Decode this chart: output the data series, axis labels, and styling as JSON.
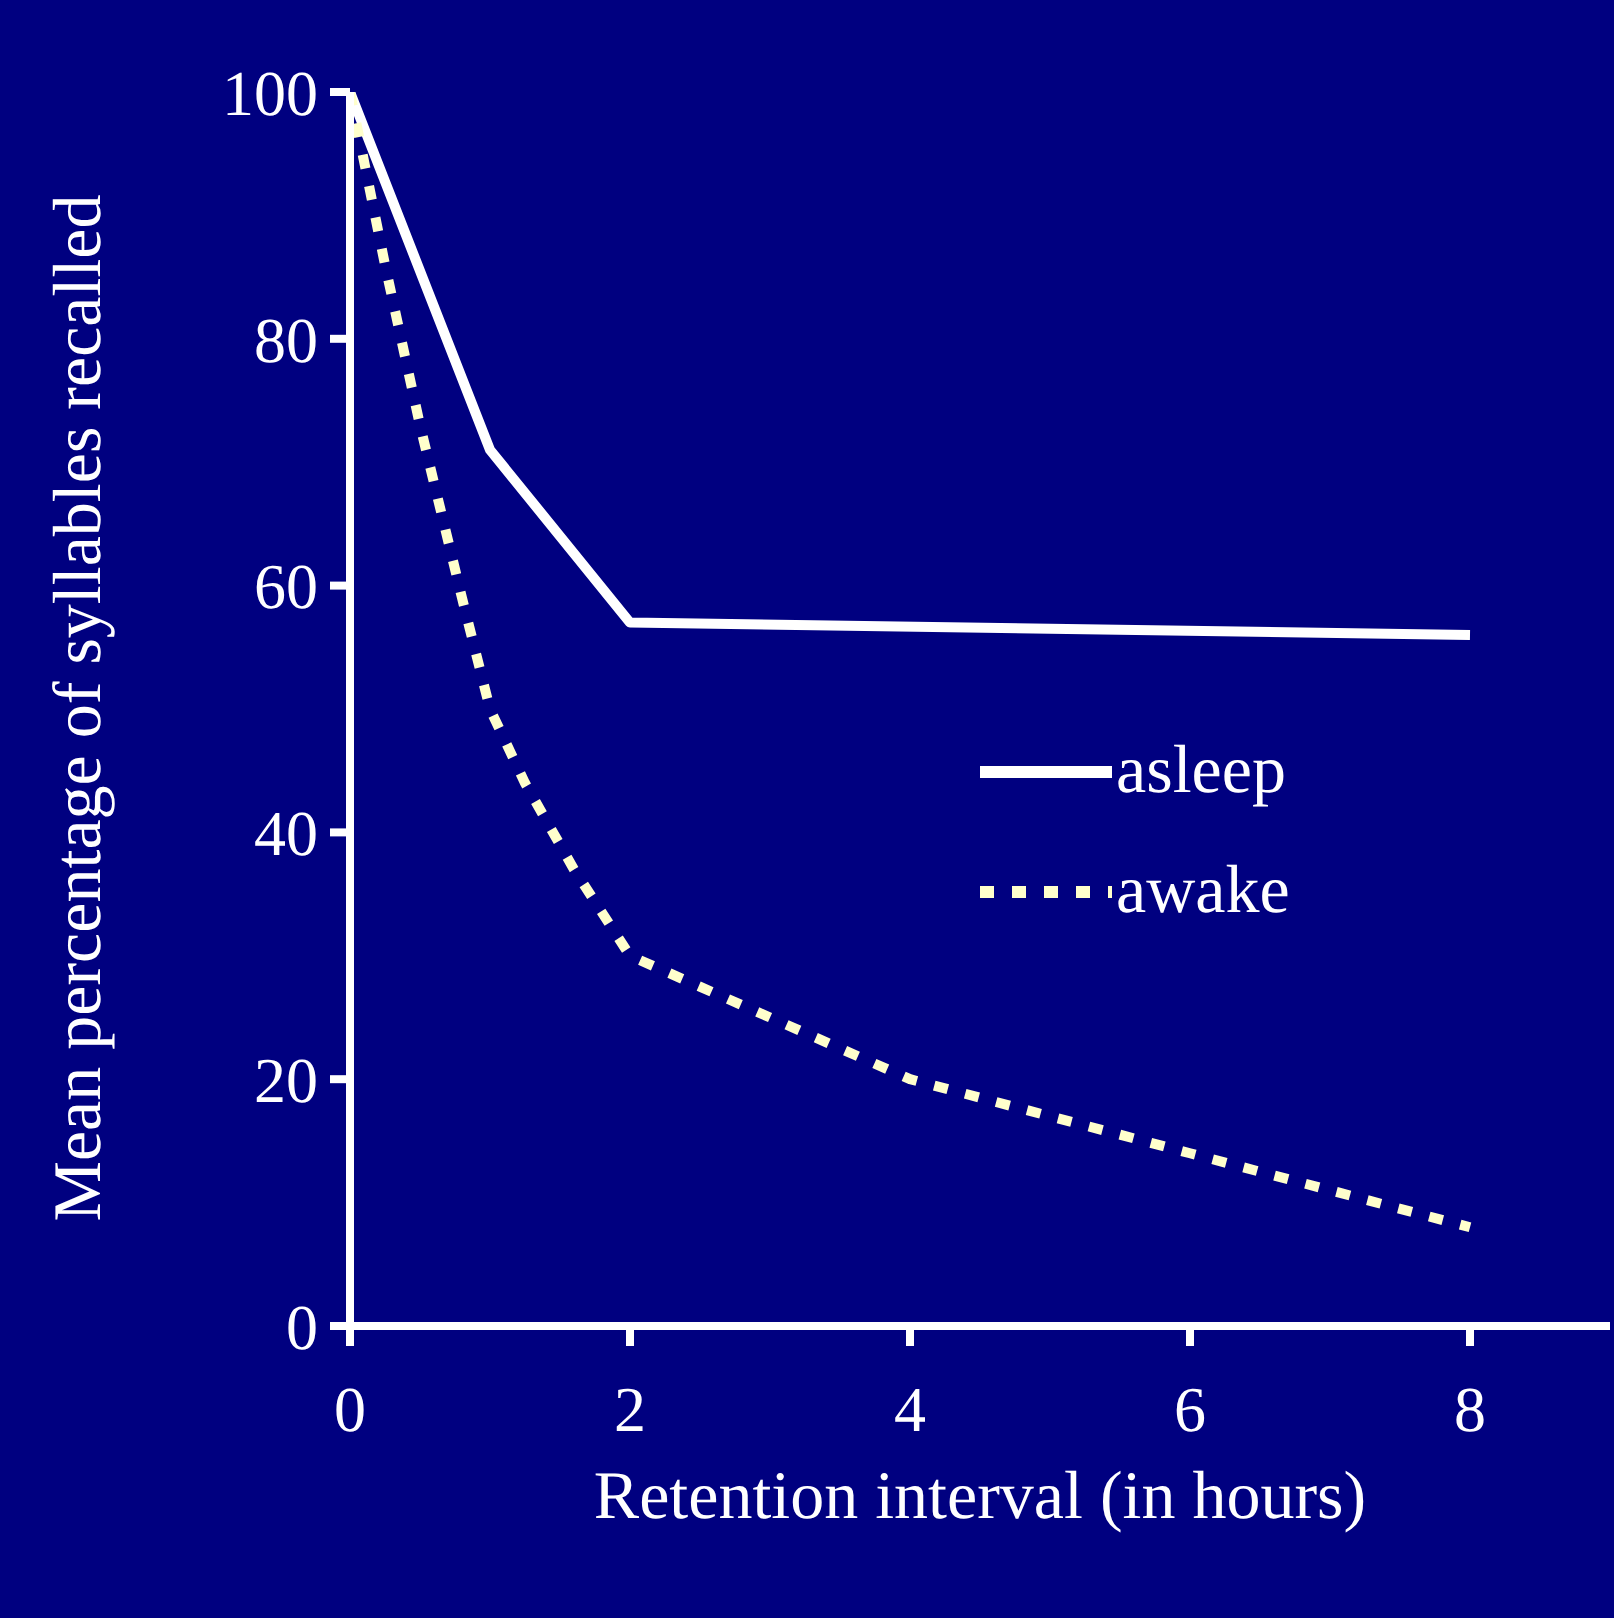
{
  "chart_data": {
    "type": "line",
    "xlabel": "Retention interval (in hours)",
    "ylabel": "Mean percentage of syllables recalled",
    "xlim": [
      0,
      9
    ],
    "xticks": [
      0,
      2,
      4,
      6,
      8
    ],
    "ylim": [
      0,
      100
    ],
    "yticks": [
      0,
      20,
      40,
      60,
      80,
      100
    ],
    "grid": false,
    "legend": "right",
    "marker": "none",
    "series": [
      {
        "name": "asleep",
        "color": "#ffffff",
        "line_style": "solid",
        "x": [
          0,
          1,
          2,
          8
        ],
        "values": [
          100,
          71,
          57,
          56
        ]
      },
      {
        "name": "awake",
        "color": "#ffffcc",
        "line_style": "dashed",
        "x": [
          0,
          0.25,
          0.5,
          0.8,
          1,
          1.25,
          1.6,
          2,
          4,
          6,
          8
        ],
        "values": [
          100,
          86,
          73,
          59,
          50,
          44,
          37,
          30,
          20,
          14,
          8
        ]
      }
    ]
  }
}
